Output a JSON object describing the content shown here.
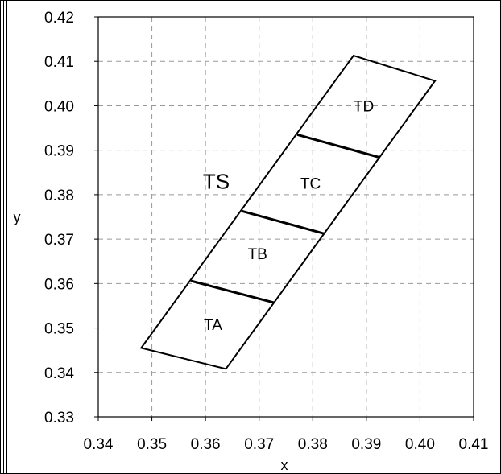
{
  "chart_data": {
    "type": "diagram-polygons",
    "title": "",
    "xlabel": "x",
    "ylabel": "y",
    "xlim": [
      0.34,
      0.41
    ],
    "ylim": [
      0.33,
      0.42
    ],
    "xticks": [
      "0.34",
      "0.35",
      "0.36",
      "0.37",
      "0.38",
      "0.39",
      "0.40",
      "0.41"
    ],
    "yticks": [
      "0.33",
      "0.34",
      "0.35",
      "0.36",
      "0.37",
      "0.38",
      "0.39",
      "0.40",
      "0.41",
      "0.42"
    ],
    "grid": true,
    "outline": [
      [
        0.348,
        0.3455
      ],
      [
        0.3638,
        0.3408
      ],
      [
        0.4028,
        0.4056
      ],
      [
        0.3876,
        0.4113
      ]
    ],
    "dividers": [
      [
        [
          0.3573,
          0.3606
        ],
        [
          0.3728,
          0.3557
        ]
      ],
      [
        [
          0.3668,
          0.3763
        ],
        [
          0.3822,
          0.3712
        ]
      ],
      [
        [
          0.3771,
          0.3935
        ],
        [
          0.3924,
          0.3884
        ]
      ]
    ],
    "regions": [
      {
        "label": "TA",
        "x": 0.3614,
        "y": 0.3508
      },
      {
        "label": "TB",
        "x": 0.3697,
        "y": 0.3668
      },
      {
        "label": "TC",
        "x": 0.3796,
        "y": 0.3826
      },
      {
        "label": "TD",
        "x": 0.3895,
        "y": 0.4
      },
      {
        "label": "TS",
        "x": 0.362,
        "y": 0.3826,
        "large": true
      }
    ]
  }
}
